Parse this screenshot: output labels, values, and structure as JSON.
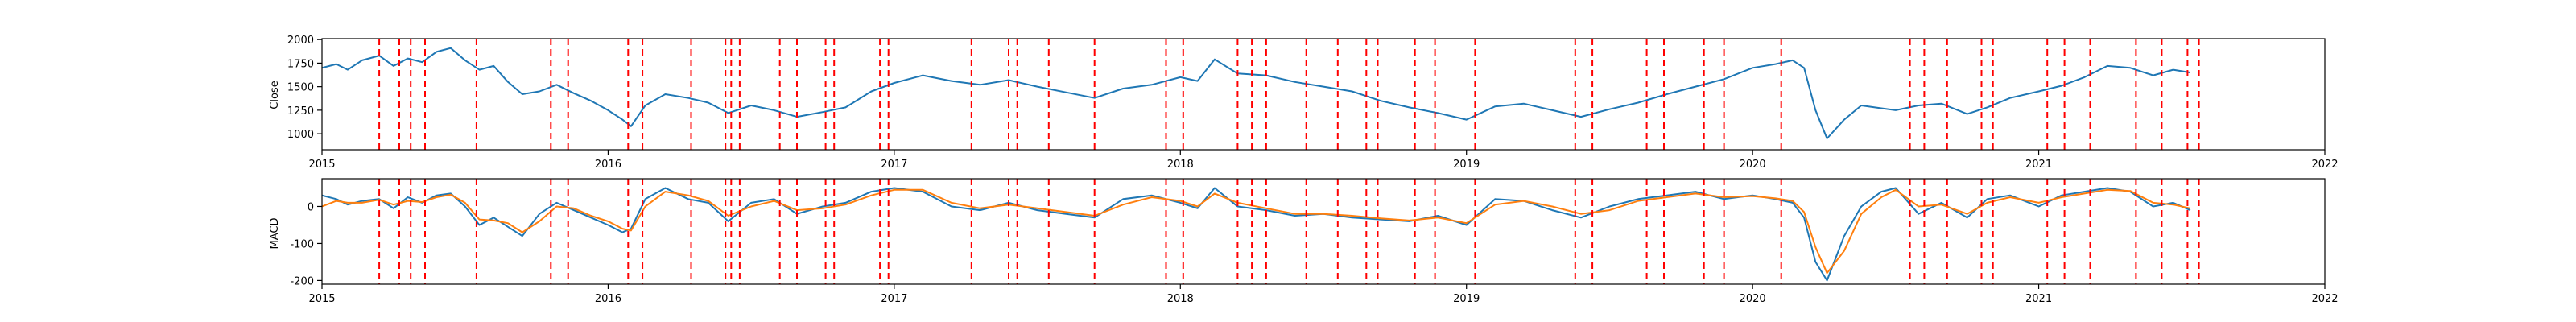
{
  "chart_data": [
    {
      "type": "line",
      "ylabel": "Close",
      "xlim": [
        2015,
        2022
      ],
      "ylim": [
        830,
        2010
      ],
      "x_ticks": [
        2015,
        2016,
        2017,
        2018,
        2019,
        2020,
        2021,
        2022
      ],
      "y_ticks": [
        1000,
        1250,
        1500,
        1750,
        2000
      ],
      "series": [
        {
          "color": "#1f77b4",
          "x": [
            2015.0,
            2015.05,
            2015.09,
            2015.14,
            2015.2,
            2015.25,
            2015.3,
            2015.35,
            2015.4,
            2015.45,
            2015.5,
            2015.55,
            2015.6,
            2015.65,
            2015.7,
            2015.76,
            2015.82,
            2015.88,
            2015.94,
            2016.0,
            2016.05,
            2016.08,
            2016.13,
            2016.2,
            2016.28,
            2016.35,
            2016.42,
            2016.5,
            2016.58,
            2016.66,
            2016.75,
            2016.83,
            2016.92,
            2017.0,
            2017.1,
            2017.2,
            2017.3,
            2017.4,
            2017.5,
            2017.6,
            2017.7,
            2017.8,
            2017.9,
            2018.0,
            2018.06,
            2018.12,
            2018.2,
            2018.3,
            2018.4,
            2018.5,
            2018.6,
            2018.7,
            2018.8,
            2018.9,
            2019.0,
            2019.1,
            2019.2,
            2019.3,
            2019.4,
            2019.5,
            2019.6,
            2019.7,
            2019.8,
            2019.9,
            2020.0,
            2020.08,
            2020.14,
            2020.18,
            2020.22,
            2020.26,
            2020.32,
            2020.38,
            2020.45,
            2020.5,
            2020.58,
            2020.66,
            2020.75,
            2020.82,
            2020.9,
            2021.0,
            2021.08,
            2021.16,
            2021.24,
            2021.32,
            2021.4,
            2021.47,
            2021.53
          ],
          "values": [
            1700,
            1740,
            1680,
            1780,
            1830,
            1720,
            1800,
            1760,
            1870,
            1910,
            1780,
            1680,
            1720,
            1550,
            1420,
            1450,
            1520,
            1430,
            1350,
            1250,
            1150,
            1080,
            1300,
            1420,
            1380,
            1330,
            1220,
            1300,
            1250,
            1180,
            1230,
            1280,
            1450,
            1540,
            1620,
            1560,
            1520,
            1570,
            1500,
            1440,
            1380,
            1480,
            1520,
            1600,
            1560,
            1790,
            1640,
            1620,
            1550,
            1500,
            1450,
            1350,
            1280,
            1220,
            1150,
            1290,
            1320,
            1250,
            1180,
            1260,
            1330,
            1420,
            1500,
            1580,
            1700,
            1740,
            1780,
            1700,
            1250,
            950,
            1150,
            1300,
            1270,
            1250,
            1300,
            1320,
            1210,
            1280,
            1380,
            1450,
            1510,
            1600,
            1720,
            1700,
            1620,
            1680,
            1650
          ]
        }
      ]
    },
    {
      "type": "line",
      "ylabel": "MACD",
      "xlim": [
        2015,
        2022
      ],
      "ylim": [
        -210,
        75
      ],
      "x_ticks": [
        2015,
        2016,
        2017,
        2018,
        2019,
        2020,
        2021,
        2022
      ],
      "y_ticks": [
        -200,
        -100,
        0
      ],
      "series": [
        {
          "color": "#1f77b4",
          "x": [
            2015.0,
            2015.05,
            2015.09,
            2015.14,
            2015.2,
            2015.25,
            2015.3,
            2015.35,
            2015.4,
            2015.45,
            2015.5,
            2015.55,
            2015.6,
            2015.65,
            2015.7,
            2015.76,
            2015.82,
            2015.88,
            2015.94,
            2016.0,
            2016.05,
            2016.08,
            2016.13,
            2016.2,
            2016.28,
            2016.35,
            2016.42,
            2016.5,
            2016.58,
            2016.66,
            2016.75,
            2016.83,
            2016.92,
            2017.0,
            2017.1,
            2017.2,
            2017.3,
            2017.4,
            2017.5,
            2017.6,
            2017.7,
            2017.8,
            2017.9,
            2018.0,
            2018.06,
            2018.12,
            2018.2,
            2018.3,
            2018.4,
            2018.5,
            2018.6,
            2018.7,
            2018.8,
            2018.9,
            2019.0,
            2019.1,
            2019.2,
            2019.3,
            2019.4,
            2019.5,
            2019.6,
            2019.7,
            2019.8,
            2019.9,
            2020.0,
            2020.08,
            2020.14,
            2020.18,
            2020.22,
            2020.26,
            2020.32,
            2020.38,
            2020.45,
            2020.5,
            2020.58,
            2020.66,
            2020.75,
            2020.82,
            2020.9,
            2021.0,
            2021.08,
            2021.16,
            2021.24,
            2021.32,
            2021.4,
            2021.47,
            2021.53
          ],
          "values": [
            30,
            20,
            5,
            15,
            20,
            -5,
            25,
            10,
            30,
            35,
            0,
            -50,
            -30,
            -55,
            -80,
            -20,
            10,
            -10,
            -30,
            -50,
            -70,
            -60,
            20,
            50,
            20,
            10,
            -40,
            10,
            20,
            -20,
            0,
            10,
            40,
            50,
            40,
            0,
            -10,
            10,
            -10,
            -20,
            -30,
            20,
            30,
            10,
            -5,
            50,
            0,
            -10,
            -25,
            -20,
            -30,
            -35,
            -40,
            -25,
            -50,
            20,
            15,
            -10,
            -30,
            0,
            20,
            30,
            40,
            20,
            30,
            20,
            10,
            -30,
            -150,
            -200,
            -80,
            0,
            40,
            50,
            -20,
            10,
            -30,
            20,
            30,
            0,
            30,
            40,
            50,
            40,
            0,
            10,
            -10
          ]
        },
        {
          "color": "#ff7f0e",
          "x": [
            2015.0,
            2015.05,
            2015.09,
            2015.14,
            2015.2,
            2015.25,
            2015.3,
            2015.35,
            2015.4,
            2015.45,
            2015.5,
            2015.55,
            2015.6,
            2015.65,
            2015.7,
            2015.76,
            2015.82,
            2015.88,
            2015.94,
            2016.0,
            2016.05,
            2016.08,
            2016.13,
            2016.2,
            2016.28,
            2016.35,
            2016.42,
            2016.5,
            2016.58,
            2016.66,
            2016.75,
            2016.83,
            2016.92,
            2017.0,
            2017.1,
            2017.2,
            2017.3,
            2017.4,
            2017.5,
            2017.6,
            2017.7,
            2017.8,
            2017.9,
            2018.0,
            2018.06,
            2018.12,
            2018.2,
            2018.3,
            2018.4,
            2018.5,
            2018.6,
            2018.7,
            2018.8,
            2018.9,
            2019.0,
            2019.1,
            2019.2,
            2019.3,
            2019.4,
            2019.5,
            2019.6,
            2019.7,
            2019.8,
            2019.9,
            2020.0,
            2020.08,
            2020.14,
            2020.18,
            2020.22,
            2020.26,
            2020.32,
            2020.38,
            2020.45,
            2020.5,
            2020.58,
            2020.66,
            2020.75,
            2020.82,
            2020.9,
            2021.0,
            2021.08,
            2021.16,
            2021.24,
            2021.32,
            2021.4,
            2021.47,
            2021.53
          ],
          "values": [
            0,
            15,
            10,
            10,
            18,
            5,
            15,
            12,
            25,
            32,
            10,
            -35,
            -38,
            -45,
            -70,
            -40,
            0,
            -5,
            -25,
            -40,
            -60,
            -65,
            0,
            40,
            30,
            15,
            -25,
            0,
            15,
            -10,
            -5,
            5,
            30,
            45,
            45,
            10,
            -5,
            5,
            -5,
            -15,
            -25,
            5,
            25,
            15,
            0,
            35,
            10,
            -5,
            -20,
            -20,
            -25,
            -32,
            -38,
            -30,
            -45,
            5,
            15,
            0,
            -20,
            -10,
            15,
            25,
            35,
            25,
            28,
            22,
            15,
            -15,
            -110,
            -180,
            -120,
            -20,
            25,
            45,
            0,
            5,
            -20,
            10,
            25,
            10,
            25,
            35,
            45,
            42,
            10,
            5,
            -5
          ]
        }
      ]
    }
  ],
  "event_dates": [
    2015.2,
    2015.27,
    2015.31,
    2015.36,
    2015.54,
    2015.8,
    2015.86,
    2016.07,
    2016.12,
    2016.29,
    2016.41,
    2016.43,
    2016.46,
    2016.6,
    2016.66,
    2016.76,
    2016.79,
    2016.95,
    2016.98,
    2017.27,
    2017.4,
    2017.43,
    2017.54,
    2017.7,
    2017.95,
    2018.01,
    2018.2,
    2018.25,
    2018.3,
    2018.44,
    2018.55,
    2018.65,
    2018.69,
    2018.82,
    2018.89,
    2019.03,
    2019.38,
    2019.44,
    2019.63,
    2019.69,
    2019.83,
    2019.9,
    2020.1,
    2020.55,
    2020.6,
    2020.68,
    2020.8,
    2020.84,
    2021.03,
    2021.09,
    2021.18,
    2021.34,
    2021.43,
    2021.52,
    2021.56
  ],
  "event_color": "#ff0000",
  "axis_color": "#000000"
}
